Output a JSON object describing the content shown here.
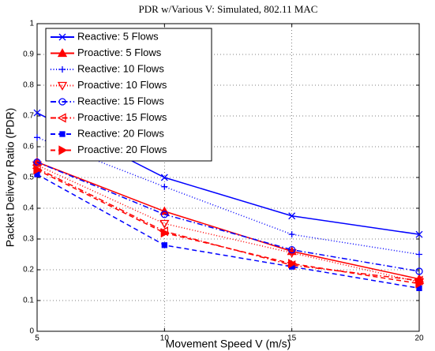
{
  "chart_data": {
    "type": "line",
    "title": "PDR w/Various V: Simulated, 802.11 MAC",
    "xlabel": "Movement Speed V (m/s)",
    "ylabel": "Packet Delivery Ratio (PDR)",
    "x": [
      5,
      10,
      15,
      20
    ],
    "xlim": [
      5,
      20
    ],
    "xticks": [
      5,
      10,
      15,
      20
    ],
    "ylim": [
      0,
      1
    ],
    "yticks": [
      0,
      0.1,
      0.2,
      0.3,
      0.4,
      0.5,
      0.6,
      0.7,
      0.8,
      0.9,
      1
    ],
    "grid": true,
    "legend": "upper left",
    "series": [
      {
        "name": "Reactive: 5 Flows",
        "color": "#0000ff",
        "linestyle": "solid",
        "marker": "x",
        "values": [
          0.71,
          0.5,
          0.375,
          0.315
        ]
      },
      {
        "name": "Proactive: 5 Flows",
        "color": "#ff0000",
        "linestyle": "solid",
        "marker": "triangle-up",
        "values": [
          0.55,
          0.39,
          0.26,
          0.17
        ]
      },
      {
        "name": "Reactive: 10 Flows",
        "color": "#0000ff",
        "linestyle": "dotted",
        "marker": "plus",
        "values": [
          0.63,
          0.47,
          0.315,
          0.25
        ]
      },
      {
        "name": "Proactive: 10 Flows",
        "color": "#ff0000",
        "linestyle": "dotted",
        "marker": "triangle-down",
        "values": [
          0.54,
          0.35,
          0.255,
          0.16
        ]
      },
      {
        "name": "Reactive: 15 Flows",
        "color": "#0000ff",
        "linestyle": "dashdot",
        "marker": "circle",
        "values": [
          0.55,
          0.38,
          0.265,
          0.195
        ]
      },
      {
        "name": "Proactive: 15 Flows",
        "color": "#ff0000",
        "linestyle": "dashdot",
        "marker": "triangle-left",
        "values": [
          0.53,
          0.325,
          0.215,
          0.165
        ]
      },
      {
        "name": "Reactive: 20 Flows",
        "color": "#0000ff",
        "linestyle": "dashed",
        "marker": "square",
        "values": [
          0.51,
          0.28,
          0.21,
          0.14
        ]
      },
      {
        "name": "Proactive: 20 Flows",
        "color": "#ff0000",
        "linestyle": "dashed",
        "marker": "triangle-right",
        "values": [
          0.525,
          0.32,
          0.22,
          0.155
        ]
      }
    ]
  }
}
